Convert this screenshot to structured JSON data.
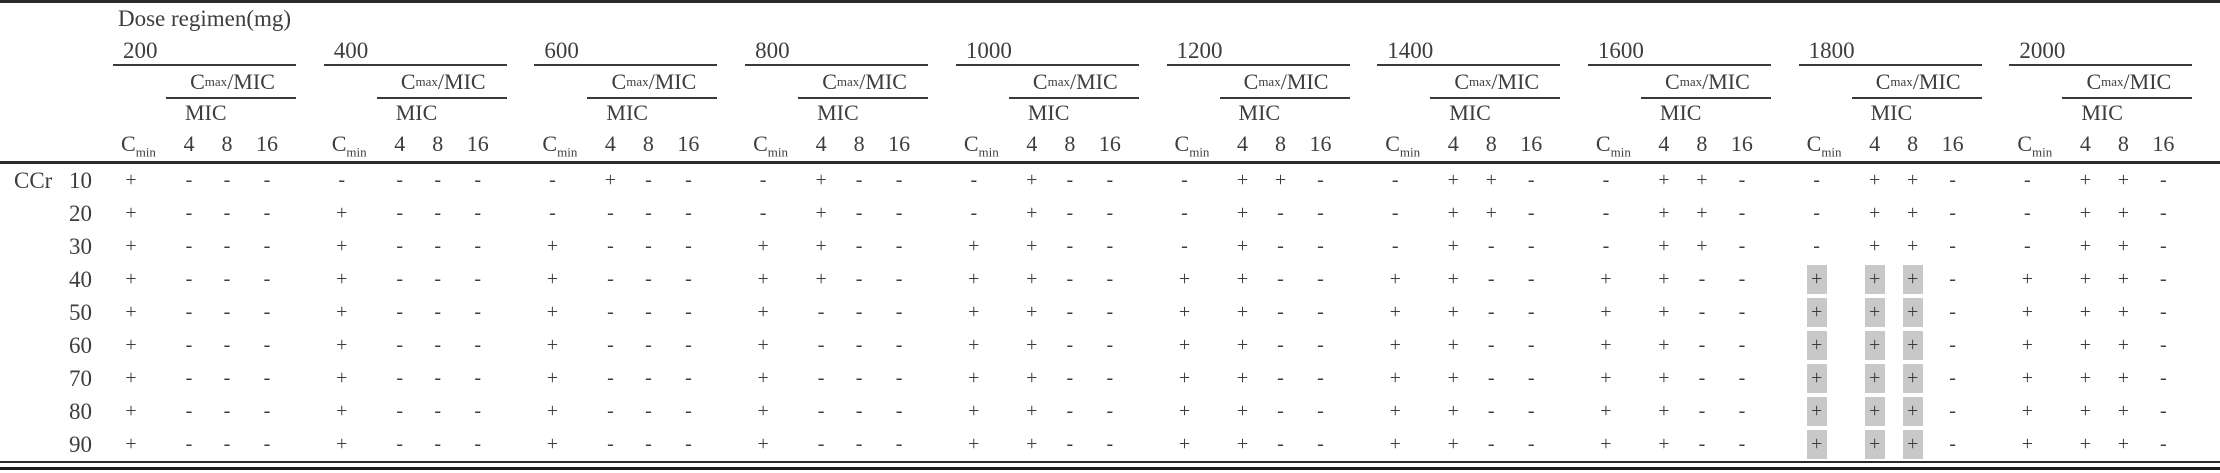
{
  "title": "Dose regimen(mg)",
  "corner_label": "CCr",
  "header": {
    "cmin": {
      "base": "C",
      "sub": "min"
    },
    "cmax_mic": {
      "base": "C",
      "sub": "max",
      "suffix": "/MIC"
    },
    "mic_label": "MIC",
    "mic_values": [
      "4",
      "8",
      "16"
    ]
  },
  "doses": [
    "200",
    "400",
    "600",
    "800",
    "1000",
    "1200",
    "1400",
    "1600",
    "1800",
    "2000"
  ],
  "legend_symbols": {
    "attained": "+",
    "not_attained": "-"
  },
  "rows": [
    {
      "ccr": "10",
      "groups": [
        "+---",
        "----",
        "-+--",
        "-+--",
        "-+--",
        "-++-",
        "-++-",
        "-++-",
        "-++-",
        "-++-"
      ]
    },
    {
      "ccr": "20",
      "groups": [
        "+---",
        "+---",
        "----",
        "-+--",
        "-+--",
        "-+--",
        "-++-",
        "-++-",
        "-++-",
        "-++-"
      ]
    },
    {
      "ccr": "30",
      "groups": [
        "+---",
        "+---",
        "+---",
        "++--",
        "++--",
        "-+--",
        "-+--",
        "-++-",
        "-++-",
        "-++-"
      ]
    },
    {
      "ccr": "40",
      "groups": [
        "+---",
        "+---",
        "+---",
        "++--",
        "++--",
        "++--",
        "++--",
        "++--",
        "+++-",
        "+++-"
      ]
    },
    {
      "ccr": "50",
      "groups": [
        "+---",
        "+---",
        "+---",
        "+---",
        "++--",
        "++--",
        "++--",
        "++--",
        "+++-",
        "+++-"
      ]
    },
    {
      "ccr": "60",
      "groups": [
        "+---",
        "+---",
        "+---",
        "+---",
        "++--",
        "++--",
        "++--",
        "++--",
        "+++-",
        "+++-"
      ]
    },
    {
      "ccr": "70",
      "groups": [
        "+---",
        "+---",
        "+---",
        "+---",
        "++--",
        "++--",
        "++--",
        "++--",
        "+++-",
        "+++-"
      ]
    },
    {
      "ccr": "80",
      "groups": [
        "+---",
        "+---",
        "+---",
        "+---",
        "++--",
        "++--",
        "++--",
        "++--",
        "+++-",
        "+++-"
      ]
    },
    {
      "ccr": "90",
      "groups": [
        "+---",
        "+---",
        "+---",
        "+---",
        "++--",
        "++--",
        "++--",
        "++--",
        "+++-",
        "+++-"
      ]
    }
  ],
  "highlight": {
    "group_dose": "1800",
    "row_ccrs": [
      "40",
      "50",
      "60",
      "70",
      "80",
      "90"
    ],
    "cell_columns": [
      "cmin",
      "4",
      "8"
    ],
    "color": "#c8c8c8"
  }
}
